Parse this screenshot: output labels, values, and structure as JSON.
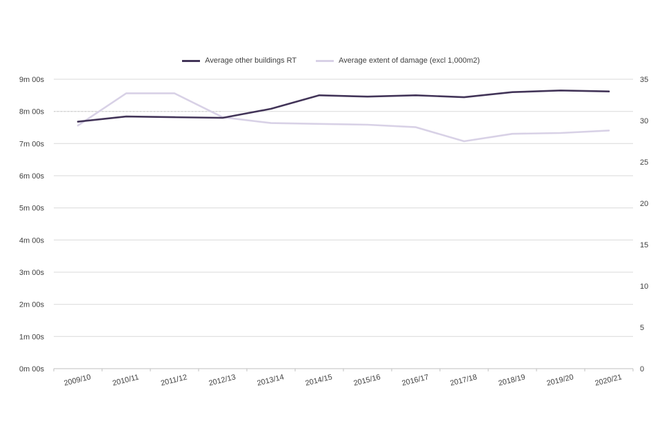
{
  "chart_data": {
    "type": "line",
    "title": "",
    "legend_position": "top",
    "grid": true,
    "categories": [
      "2009/10",
      "2010/11",
      "2011/12",
      "2012/13",
      "2013/14",
      "2014/15",
      "2015/16",
      "2016/17",
      "2017/18",
      "2018/19",
      "2019/20",
      "2020/21"
    ],
    "series": [
      {
        "name": "Average other buildings RT",
        "axis": "left",
        "color": "#423458",
        "values": [
          7.68,
          7.84,
          7.82,
          7.8,
          8.08,
          8.5,
          8.46,
          8.5,
          8.44,
          8.6,
          8.65,
          8.62
        ]
      },
      {
        "name": "Average extent of damage (excl 1,000m2)",
        "axis": "right",
        "color": "#d8d1e6",
        "values": [
          29.4,
          33.3,
          33.3,
          30.4,
          29.7,
          29.6,
          29.5,
          29.2,
          27.5,
          28.4,
          28.5,
          28.8
        ]
      }
    ],
    "left_axis": {
      "min": 0,
      "max": 9,
      "step": 1,
      "tick_labels": [
        "0m 00s",
        "1m 00s",
        "2m 00s",
        "3m 00s",
        "4m 00s",
        "5m 00s",
        "6m 00s",
        "7m 00s",
        "8m 00s",
        "9m 00s"
      ]
    },
    "right_axis": {
      "min": 0,
      "max": 35,
      "step": 5,
      "tick_labels": [
        "0",
        "5",
        "10",
        "15",
        "20",
        "25",
        "30",
        "35"
      ]
    },
    "dotted_gridline_segment": {
      "at_left_value": 8,
      "to_category": "2012/13"
    },
    "colors": {
      "gridline": "#d9d9d9",
      "axis_line": "#bfbfbf",
      "tick_text": "#404040",
      "dotted_segment": "#c6c6c6"
    }
  }
}
